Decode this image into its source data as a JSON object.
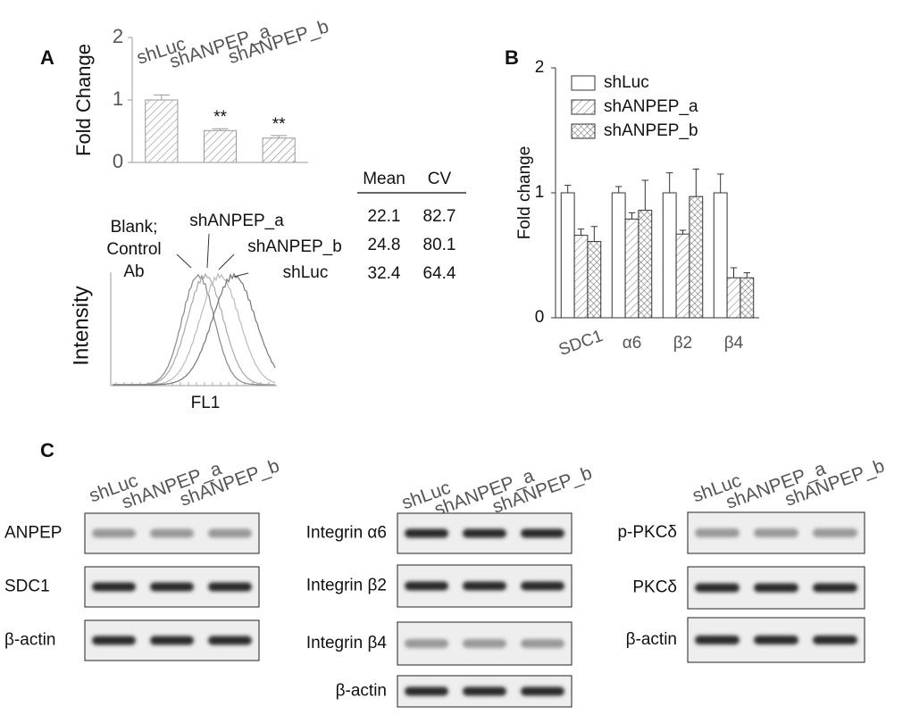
{
  "panels": [
    "A",
    "B",
    "C"
  ],
  "chart_data": [
    {
      "type": "bar",
      "y_label": "Fold Change",
      "categories": [
        "shLuc",
        "shANPEP_a",
        "shANPEP_b"
      ],
      "values": [
        1.0,
        0.51,
        0.39
      ],
      "errors": [
        0.08,
        0.03,
        0.04
      ],
      "annotations": [
        null,
        "**",
        "**"
      ],
      "ylim": [
        0,
        2
      ],
      "yticks": [
        0,
        1,
        2
      ],
      "color": "#ffffff",
      "pattern": "diagonal"
    },
    {
      "type": "bar",
      "y_label": "Fold change",
      "categories": [
        "SDC1",
        "α6",
        "β2",
        "β4"
      ],
      "series": [
        {
          "name": "shLuc",
          "color": "#ffffff",
          "pattern": "none",
          "values": [
            1.0,
            1.0,
            1.0,
            1.0
          ],
          "errors": [
            0.06,
            0.05,
            0.16,
            0.15
          ]
        },
        {
          "name": "shANPEP_a",
          "color": "#ffffff",
          "pattern": "diagonal",
          "values": [
            0.66,
            0.79,
            0.67,
            0.32
          ],
          "errors": [
            0.05,
            0.05,
            0.03,
            0.08
          ]
        },
        {
          "name": "shANPEP_b",
          "color": "#ffffff",
          "pattern": "cross",
          "values": [
            0.61,
            0.86,
            0.97,
            0.32
          ],
          "errors": [
            0.12,
            0.24,
            0.22,
            0.04
          ]
        }
      ],
      "ylim": [
        0,
        2
      ],
      "yticks": [
        0,
        1,
        2
      ],
      "legend": "upper left"
    }
  ],
  "flow": {
    "y_label": "Intensity",
    "x_label": "FL1",
    "blank_label": [
      "Blank;",
      "Control",
      "Ab"
    ],
    "curve_labels": [
      "shANPEP_a",
      "shANPEP_b",
      "shLuc"
    ],
    "table": {
      "header": [
        "Mean",
        "CV"
      ],
      "rows": [
        [
          22.1,
          82.7
        ],
        [
          24.8,
          80.1
        ],
        [
          32.4,
          64.4
        ]
      ]
    }
  },
  "blots": [
    {
      "columns": [
        "shLuc",
        "shANPEP_a",
        "shANPEP_b"
      ],
      "rows": [
        "ANPEP",
        "SDC1",
        "β-actin"
      ]
    },
    {
      "columns": [
        "shLuc",
        "shANPEP_a",
        "shANPEP_b"
      ],
      "rows": [
        "Integrin α6",
        "Integrin β2",
        "Integrin β4",
        "β-actin"
      ]
    },
    {
      "columns": [
        "shLuc",
        "shANPEP_a",
        "shANPEP_b"
      ],
      "rows": [
        "p-PKCδ",
        "PKCδ",
        "β-actin"
      ]
    }
  ]
}
